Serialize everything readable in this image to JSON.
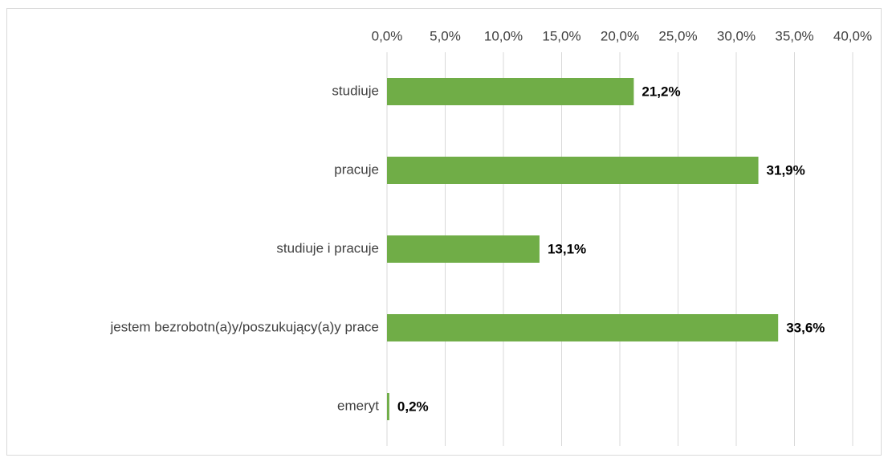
{
  "chart_data": {
    "type": "bar",
    "orientation": "horizontal",
    "categories": [
      "studiuje",
      "pracuje",
      "studiuje i pracuje",
      "jestem bezrobotn(a)y/poszukujący(a)y prace",
      "emeryt"
    ],
    "values": [
      21.2,
      31.9,
      13.1,
      33.6,
      0.2
    ],
    "value_labels": [
      "21,2%",
      "31,9%",
      "13,1%",
      "33,6%",
      "0,2%"
    ],
    "color": "#70ad47",
    "xlim": [
      0,
      40
    ],
    "xticks": [
      {
        "value": 0,
        "label": "0,0%"
      },
      {
        "value": 5,
        "label": "5,0%"
      },
      {
        "value": 10,
        "label": "10,0%"
      },
      {
        "value": 15,
        "label": "15,0%"
      },
      {
        "value": 20,
        "label": "20,0%"
      },
      {
        "value": 25,
        "label": "25,0%"
      },
      {
        "value": 30,
        "label": "30,0%"
      },
      {
        "value": 35,
        "label": "35,0%"
      },
      {
        "value": 40,
        "label": "40,0%"
      }
    ],
    "grid": true
  }
}
